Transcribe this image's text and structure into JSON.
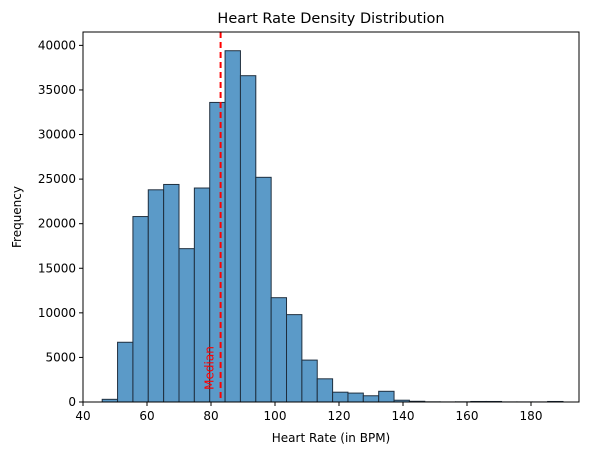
{
  "chart_data": {
    "type": "bar",
    "title": "Heart Rate Density Distribution",
    "xlabel": "Heart Rate (in BPM)",
    "ylabel": "Frequency",
    "xlim": [
      40,
      195
    ],
    "ylim": [
      0,
      41500
    ],
    "x_ticks": [
      40,
      60,
      80,
      100,
      120,
      140,
      160,
      180
    ],
    "y_ticks": [
      0,
      5000,
      10000,
      15000,
      20000,
      25000,
      30000,
      35000,
      40000
    ],
    "bins": [
      {
        "start": 46.0,
        "end": 50.8,
        "value": 300
      },
      {
        "start": 50.8,
        "end": 55.6,
        "value": 6700
      },
      {
        "start": 55.6,
        "end": 60.4,
        "value": 20800
      },
      {
        "start": 60.4,
        "end": 65.2,
        "value": 23800
      },
      {
        "start": 65.2,
        "end": 70.0,
        "value": 24400
      },
      {
        "start": 70.0,
        "end": 74.8,
        "value": 17200
      },
      {
        "start": 74.8,
        "end": 79.6,
        "value": 24000
      },
      {
        "start": 79.6,
        "end": 84.4,
        "value": 33600
      },
      {
        "start": 84.4,
        "end": 89.2,
        "value": 39400
      },
      {
        "start": 89.2,
        "end": 94.0,
        "value": 36600
      },
      {
        "start": 94.0,
        "end": 98.8,
        "value": 25200
      },
      {
        "start": 98.8,
        "end": 103.6,
        "value": 11700
      },
      {
        "start": 103.6,
        "end": 108.4,
        "value": 9800
      },
      {
        "start": 108.4,
        "end": 113.2,
        "value": 4700
      },
      {
        "start": 113.2,
        "end": 118.0,
        "value": 2600
      },
      {
        "start": 118.0,
        "end": 122.8,
        "value": 1100
      },
      {
        "start": 122.8,
        "end": 127.6,
        "value": 1000
      },
      {
        "start": 127.6,
        "end": 132.4,
        "value": 700
      },
      {
        "start": 132.4,
        "end": 137.2,
        "value": 1200
      },
      {
        "start": 137.2,
        "end": 142.0,
        "value": 200
      },
      {
        "start": 142.0,
        "end": 146.8,
        "value": 80
      },
      {
        "start": 146.8,
        "end": 151.6,
        "value": 20
      },
      {
        "start": 151.6,
        "end": 156.4,
        "value": 10
      },
      {
        "start": 156.4,
        "end": 161.2,
        "value": 20
      },
      {
        "start": 161.2,
        "end": 166.0,
        "value": 60
      },
      {
        "start": 166.0,
        "end": 170.8,
        "value": 60
      },
      {
        "start": 170.8,
        "end": 175.6,
        "value": 10
      },
      {
        "start": 175.6,
        "end": 180.4,
        "value": 10
      },
      {
        "start": 180.4,
        "end": 185.2,
        "value": 10
      },
      {
        "start": 185.2,
        "end": 190.0,
        "value": 60
      }
    ],
    "median": {
      "value": 83,
      "label": "Median",
      "color": "#ff0000",
      "style": "dashed"
    },
    "bar_color": "#5b9ac8",
    "bar_edge_color": "#1f2f3f",
    "grid": false,
    "legend": "none"
  }
}
